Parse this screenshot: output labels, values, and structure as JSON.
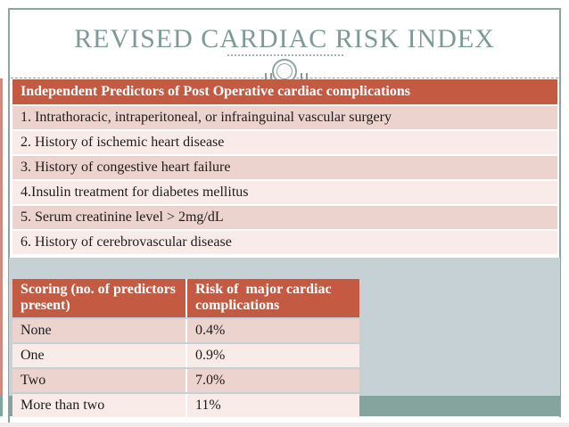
{
  "title": "REVISED CARDIAC RISK INDEX",
  "predictor_table": {
    "header": "Independent Predictors of Post Operative cardiac complications",
    "rows": [
      "1. Intrathoracic, intraperitoneal, or infrainguinal vascular surgery",
      "2. History of ischemic heart disease",
      "3. History of congestive heart failure",
      "4.Insulin treatment for diabetes mellitus",
      "5. Serum creatinine level > 2mg/dL",
      "6. History of cerebrovascular disease"
    ]
  },
  "scoring_table": {
    "columns": [
      "Scoring (no. of predictors present)",
      "Risk of  major cardiac complications"
    ],
    "rows": [
      [
        "None",
        "0.4%"
      ],
      [
        "One",
        "0.9%"
      ],
      [
        "Two",
        "7.0%"
      ],
      [
        "More than two",
        "11%"
      ]
    ]
  },
  "colors": {
    "accent_header": "#c35a41",
    "row_dark": "#ecd3cd",
    "row_light": "#f9ebe7",
    "slide_border": "#8ba5a1",
    "title_text": "#7d9a96",
    "background_panel": "#c6d1d5",
    "background_band": "#85a49e",
    "edge_accent_red": "#d28a7e",
    "edge_accent_teal": "#7ea69f"
  }
}
